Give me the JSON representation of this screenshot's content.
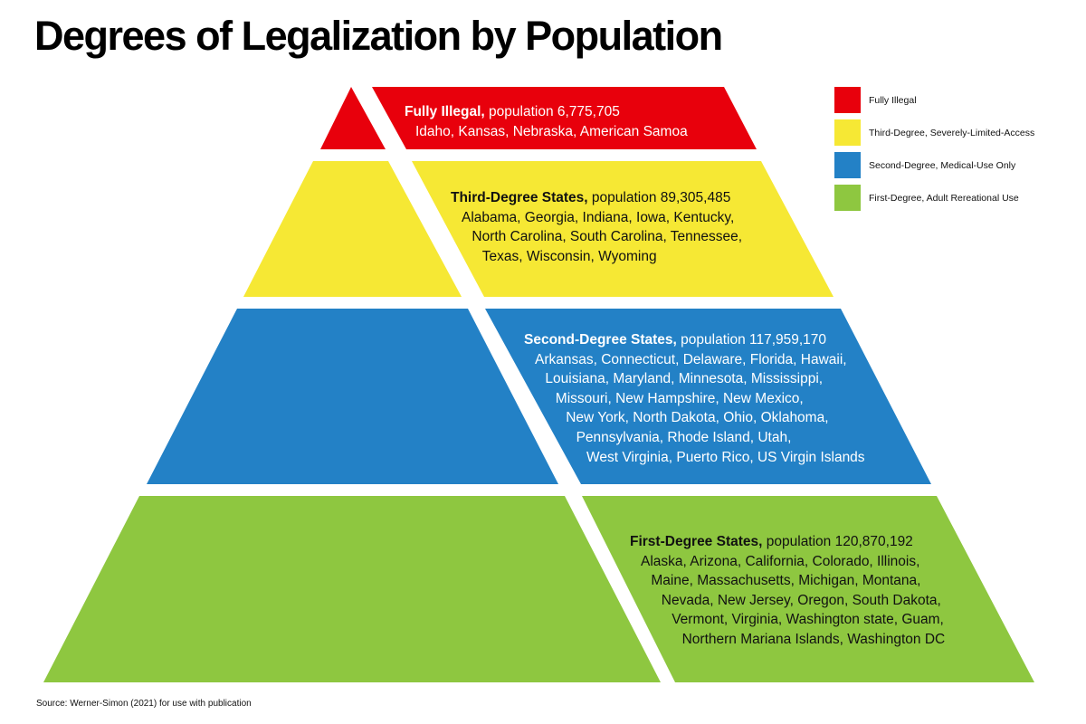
{
  "title": "Degrees of Legalization by Population",
  "colors": {
    "fully_illegal": "#e8000c",
    "third_degree": "#f6e834",
    "second_degree": "#2381c6",
    "first_degree": "#8ec740"
  },
  "tiers": {
    "fully_illegal": {
      "heading": "Fully Illegal,",
      "population": "population 6,775,705",
      "states": [
        "Idaho, Kansas, Nebraska, American Samoa"
      ]
    },
    "third_degree": {
      "heading": "Third-Degree States,",
      "population": "population 89,305,485",
      "states": [
        "Alabama, Georgia, Indiana, Iowa, Kentucky,",
        "North Carolina, South Carolina, Tennessee,",
        "Texas, Wisconsin, Wyoming"
      ]
    },
    "second_degree": {
      "heading": "Second-Degree States,",
      "population": "population 117,959,170",
      "states": [
        "Arkansas, Connecticut, Delaware, Florida, Hawaii,",
        "Louisiana, Maryland, Minnesota, Mississippi,",
        "Missouri, New Hampshire, New Mexico,",
        "New York, North Dakota, Ohio, Oklahoma,",
        "Pennsylvania, Rhode Island, Utah,",
        "West Virginia, Puerto Rico, US Virgin Islands"
      ]
    },
    "first_degree": {
      "heading": "First-Degree States,",
      "population": "population 120,870,192",
      "states": [
        "Alaska, Arizona, California, Colorado, Illinois,",
        "Maine, Massachusetts, Michigan, Montana,",
        "Nevada, New Jersey, Oregon, South Dakota,",
        "Vermont, Virginia, Washington state, Guam,",
        "Northern Mariana Islands, Washington DC"
      ]
    }
  },
  "legend": [
    {
      "label": "Fully Illegal",
      "color": "#e8000c"
    },
    {
      "label": "Third-Degree, Severely-Limited-Access",
      "color": "#f6e834"
    },
    {
      "label": "Second-Degree, Medical-Use Only",
      "color": "#2381c6"
    },
    {
      "label": "First-Degree, Adult Rereational Use",
      "color": "#8ec740"
    }
  ],
  "source": "Source: Werner-Simon (2021) for use with publication"
}
